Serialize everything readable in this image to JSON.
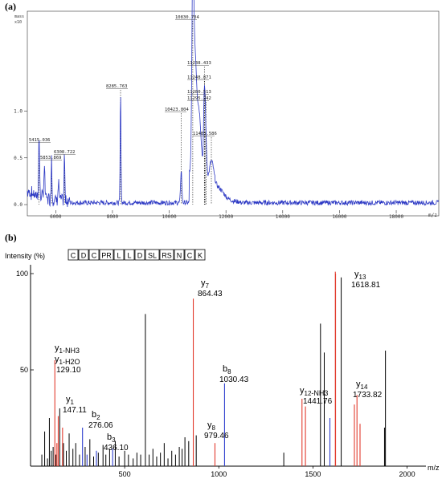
{
  "panel_a": {
    "label": "(a)",
    "y_unit_line1": "mass",
    "y_unit_line2": "x10",
    "x_unit": "m/z",
    "chart_data": {
      "type": "line",
      "xlabel": "m/z",
      "ylabel": "",
      "xlim": [
        5000,
        19500
      ],
      "ylim": [
        0,
        1.0
      ],
      "x_ticks": [
        6000,
        8000,
        10000,
        12000,
        14000,
        16000,
        18000
      ],
      "x_tick_labels": [
        "6000",
        "8000",
        "10000",
        "12000",
        "14000",
        "16000",
        "18000"
      ],
      "y_ticks": [
        0.0,
        0.5,
        1.0
      ],
      "y_tick_labels": [
        "0.0",
        "0.5",
        "1.0"
      ],
      "peak_annotations": [
        {
          "label": "5415.036",
          "x": 5415.036,
          "y": 0.62
        },
        {
          "label": "5853.869",
          "x": 5853.869,
          "y": 0.48
        },
        {
          "label": "6308.722",
          "x": 6308.722,
          "y": 0.51
        },
        {
          "label": "8285.763",
          "x": 8285.763,
          "y": 1.18
        },
        {
          "label": "10423.804",
          "x": 10423.804,
          "y": 0.95
        },
        {
          "label": "10830.704",
          "x": 10830.704,
          "y": 1.9
        },
        {
          "label": "11238.433",
          "x": 11238.433,
          "y": 1.42
        },
        {
          "label": "11248.871",
          "x": 11248.871,
          "y": 1.23
        },
        {
          "label": "11280.513",
          "x": 11280.513,
          "y": 1.07
        },
        {
          "label": "11295.242",
          "x": 11295.242,
          "y": 1.02
        },
        {
          "label": "11485.586",
          "x": 11485.586,
          "y": 0.65
        }
      ]
    }
  },
  "panel_b": {
    "label": "(b)",
    "intensity_label": "Intensity (%)",
    "sequence": [
      "C",
      "D",
      "C",
      "PR",
      "L",
      "L",
      "D",
      "SL",
      "RS",
      "N",
      "C",
      "K"
    ],
    "x_unit": "m/z",
    "chart_data": {
      "type": "bar",
      "xlabel": "m/z",
      "ylabel": "Intensity (%)",
      "xlim": [
        0,
        2100
      ],
      "ylim": [
        0,
        100
      ],
      "x_ticks": [
        500,
        1000,
        1500,
        2000
      ],
      "x_tick_labels": [
        "500",
        "1000",
        "1500",
        "2000"
      ],
      "y_ticks": [
        50,
        100
      ],
      "y_tick_labels": [
        "50",
        "100"
      ],
      "colors": {
        "y_ion": "#e23b2e",
        "b_ion": "#2f3fcf",
        "other": "#000000"
      },
      "series": [
        {
          "name": "y ions",
          "color": "#e23b2e",
          "x": [
            129.1,
            147.11,
            864.43,
            979.46,
            1441.76,
            1618.81,
            1733.82,
            1460,
            1620,
            1720,
            1750,
            170,
            140
          ],
          "values": [
            55,
            26,
            87,
            12,
            35,
            101,
            37,
            31,
            100,
            32,
            22,
            20,
            12
          ]
        },
        {
          "name": "b ions",
          "color": "#2f3fcf",
          "x": [
            276.06,
            436.1,
            1030.43,
            1590,
            350,
            300
          ],
          "values": [
            20,
            9,
            43,
            25,
            8,
            6
          ]
        }
      ],
      "other_peaks": {
        "x": [
          60,
          75,
          90,
          100,
          110,
          120,
          135,
          155,
          175,
          190,
          205,
          225,
          240,
          260,
          290,
          315,
          335,
          360,
          385,
          400,
          420,
          450,
          470,
          500,
          520,
          545,
          565,
          585,
          610,
          630,
          650,
          670,
          690,
          710,
          730,
          750,
          770,
          790,
          805,
          820,
          840,
          880,
          1345,
          1540,
          1560,
          1650,
          1880,
          1885
        ],
        "values": [
          6,
          18,
          4,
          25,
          8,
          10,
          6,
          30,
          12,
          8,
          17,
          9,
          12,
          6,
          10,
          14,
          5,
          7,
          11,
          6,
          9,
          13,
          5,
          8,
          6,
          4,
          7,
          6,
          79,
          6,
          9,
          5,
          7,
          12,
          4,
          8,
          6,
          10,
          9,
          15,
          13,
          16,
          7,
          74,
          59,
          98,
          20,
          60
        ]
      },
      "ion_labels": [
        {
          "ion": "y1-NH3",
          "mz": "",
          "x": 129.1,
          "y": 55
        },
        {
          "ion": "y1-H2O",
          "mz": "129.10",
          "x": 129.1,
          "y": 55
        },
        {
          "ion": "y1",
          "mz": "147.11",
          "x": 147.11,
          "y": 26
        },
        {
          "ion": "b2",
          "mz": "276.06",
          "x": 276.06,
          "y": 20
        },
        {
          "ion": "b3",
          "mz": "436.10",
          "x": 436.1,
          "y": 9
        },
        {
          "ion": "y7",
          "mz": "864.43",
          "x": 864.43,
          "y": 87
        },
        {
          "ion": "b8",
          "mz": "1030.43",
          "x": 1030.43,
          "y": 43
        },
        {
          "ion": "y8",
          "mz": "979.46",
          "x": 979.46,
          "y": 12
        },
        {
          "ion": "y12-NH3",
          "mz": "1441.76",
          "x": 1441.76,
          "y": 35
        },
        {
          "ion": "y13",
          "mz": "1618.81",
          "x": 1618.81,
          "y": 101
        },
        {
          "ion": "y14",
          "mz": "1733.82",
          "x": 1733.82,
          "y": 37
        }
      ]
    }
  }
}
